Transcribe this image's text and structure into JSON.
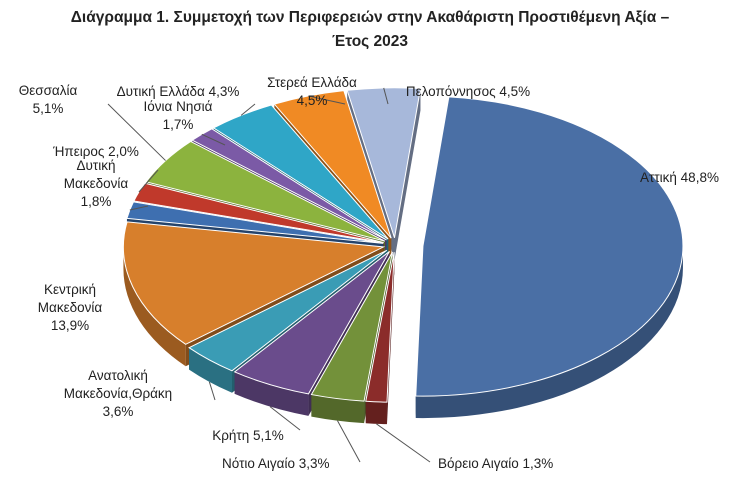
{
  "chart_data": {
    "type": "pie",
    "title_lines": [
      "Διάγραμμα 1. Συμμετοχή των Περιφερειών στην Ακαθάριστη Προστιθέμενη Αξία –",
      "Έτος 2023"
    ],
    "slices": [
      {
        "label_lines": [
          "Αττική 48,8%"
        ],
        "value": 48.8,
        "color": "#4A6FA5"
      },
      {
        "label_lines": [
          "Βόρειο Αιγαίο 1,3%"
        ],
        "value": 1.3,
        "color": "#8B2C2A"
      },
      {
        "label_lines": [
          "Νότιο Αιγαίο 3,3%"
        ],
        "value": 3.3,
        "color": "#73913A"
      },
      {
        "label_lines": [
          "Κρήτη 5,1%"
        ],
        "value": 5.1,
        "color": "#6A4C8C"
      },
      {
        "label_lines": [
          "Ανατολική",
          "Μακεδονία,Θράκη",
          "3,6%"
        ],
        "value": 3.6,
        "color": "#3A9CB5"
      },
      {
        "label_lines": [
          "Κεντρική",
          "Μακεδονία",
          "13,9%"
        ],
        "value": 13.9,
        "color": "#D77F2C"
      },
      {
        "label_lines": [
          "Δυτική",
          "Μακεδονία",
          "1,8%"
        ],
        "value": 1.8,
        "color": "#3E6FB0"
      },
      {
        "label_lines": [
          "Ήπειρος 2,0%"
        ],
        "value": 2.0,
        "color": "#C0392B"
      },
      {
        "label_lines": [
          "Θεσσαλία",
          "5,1%"
        ],
        "value": 5.1,
        "color": "#8CB33E"
      },
      {
        "label_lines": [
          "Ιόνια Νησιά",
          "1,7%"
        ],
        "value": 1.7,
        "color": "#7B5AA6"
      },
      {
        "label_lines": [
          "Δυτική Ελλάδα 4,3%"
        ],
        "value": 4.3,
        "color": "#2FA6C7"
      },
      {
        "label_lines": [
          "Στερεά Ελλάδα",
          "4,5%"
        ],
        "value": 4.5,
        "color": "#F08A24"
      },
      {
        "label_lines": [
          "Πελοπόννησος 4,5%"
        ],
        "value": 4.5,
        "color": "#A7B8DA"
      }
    ],
    "exploded_slice": "Αττική 48,8%",
    "legend": "none"
  }
}
